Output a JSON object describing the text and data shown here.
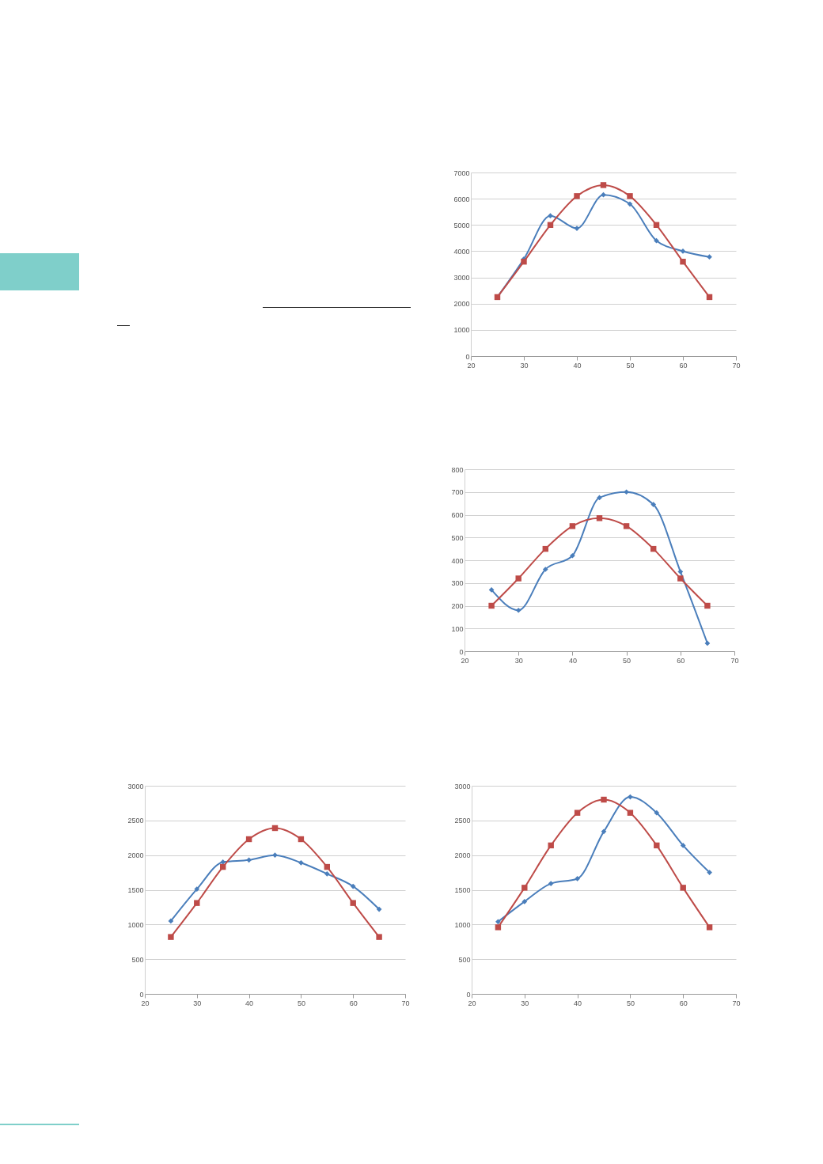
{
  "chart_data": [
    {
      "type": "line",
      "x": [
        25,
        30,
        35,
        40,
        45,
        50,
        55,
        60,
        65
      ],
      "xlim": [
        20,
        70
      ],
      "xticks": [
        20,
        30,
        40,
        50,
        60,
        70
      ],
      "ylim": [
        0,
        7000
      ],
      "yticks": [
        0,
        1000,
        2000,
        3000,
        4000,
        5000,
        6000,
        7000
      ],
      "grid": "y",
      "series": [
        {
          "color": "#4a7ebb",
          "marker": "diamond",
          "values": [
            2250,
            3700,
            5350,
            4870,
            6150,
            5800,
            4400,
            4000,
            3780
          ]
        },
        {
          "color": "#be4b48",
          "marker": "square",
          "values": [
            2250,
            3600,
            5000,
            6100,
            6520,
            6100,
            5000,
            3600,
            2250
          ]
        }
      ]
    },
    {
      "type": "line",
      "x": [
        25,
        30,
        35,
        40,
        45,
        50,
        55,
        60,
        65
      ],
      "xlim": [
        20,
        70
      ],
      "xticks": [
        20,
        30,
        40,
        50,
        60,
        70
      ],
      "ylim": [
        0,
        800
      ],
      "yticks": [
        0,
        100,
        200,
        300,
        400,
        500,
        600,
        700,
        800
      ],
      "grid": "y",
      "series": [
        {
          "color": "#4a7ebb",
          "marker": "diamond",
          "values": [
            270,
            180,
            360,
            420,
            675,
            700,
            645,
            350,
            35
          ]
        },
        {
          "color": "#be4b48",
          "marker": "square",
          "values": [
            200,
            320,
            450,
            550,
            585,
            550,
            450,
            320,
            200
          ]
        }
      ]
    },
    {
      "type": "line",
      "x": [
        25,
        30,
        35,
        40,
        45,
        50,
        55,
        60,
        65
      ],
      "xlim": [
        20,
        70
      ],
      "xticks": [
        20,
        30,
        40,
        50,
        60,
        70
      ],
      "ylim": [
        0,
        3000
      ],
      "yticks": [
        0,
        500,
        1000,
        1500,
        2000,
        2500,
        3000
      ],
      "grid": "y",
      "series": [
        {
          "color": "#4a7ebb",
          "marker": "diamond",
          "values": [
            1050,
            1510,
            1900,
            1930,
            2000,
            1890,
            1730,
            1550,
            1220
          ]
        },
        {
          "color": "#be4b48",
          "marker": "square",
          "values": [
            820,
            1310,
            1830,
            2230,
            2390,
            2230,
            1830,
            1310,
            820
          ]
        }
      ]
    },
    {
      "type": "line",
      "x": [
        25,
        30,
        35,
        40,
        45,
        50,
        55,
        60,
        65
      ],
      "xlim": [
        20,
        70
      ],
      "xticks": [
        20,
        30,
        40,
        50,
        60,
        70
      ],
      "ylim": [
        0,
        3000
      ],
      "yticks": [
        0,
        500,
        1000,
        1500,
        2000,
        2500,
        3000
      ],
      "grid": "y",
      "series": [
        {
          "color": "#4a7ebb",
          "marker": "diamond",
          "values": [
            1040,
            1330,
            1590,
            1660,
            2340,
            2840,
            2610,
            2140,
            1750
          ]
        },
        {
          "color": "#be4b48",
          "marker": "square",
          "values": [
            960,
            1530,
            2140,
            2610,
            2800,
            2610,
            2140,
            1530,
            960
          ]
        }
      ]
    }
  ]
}
